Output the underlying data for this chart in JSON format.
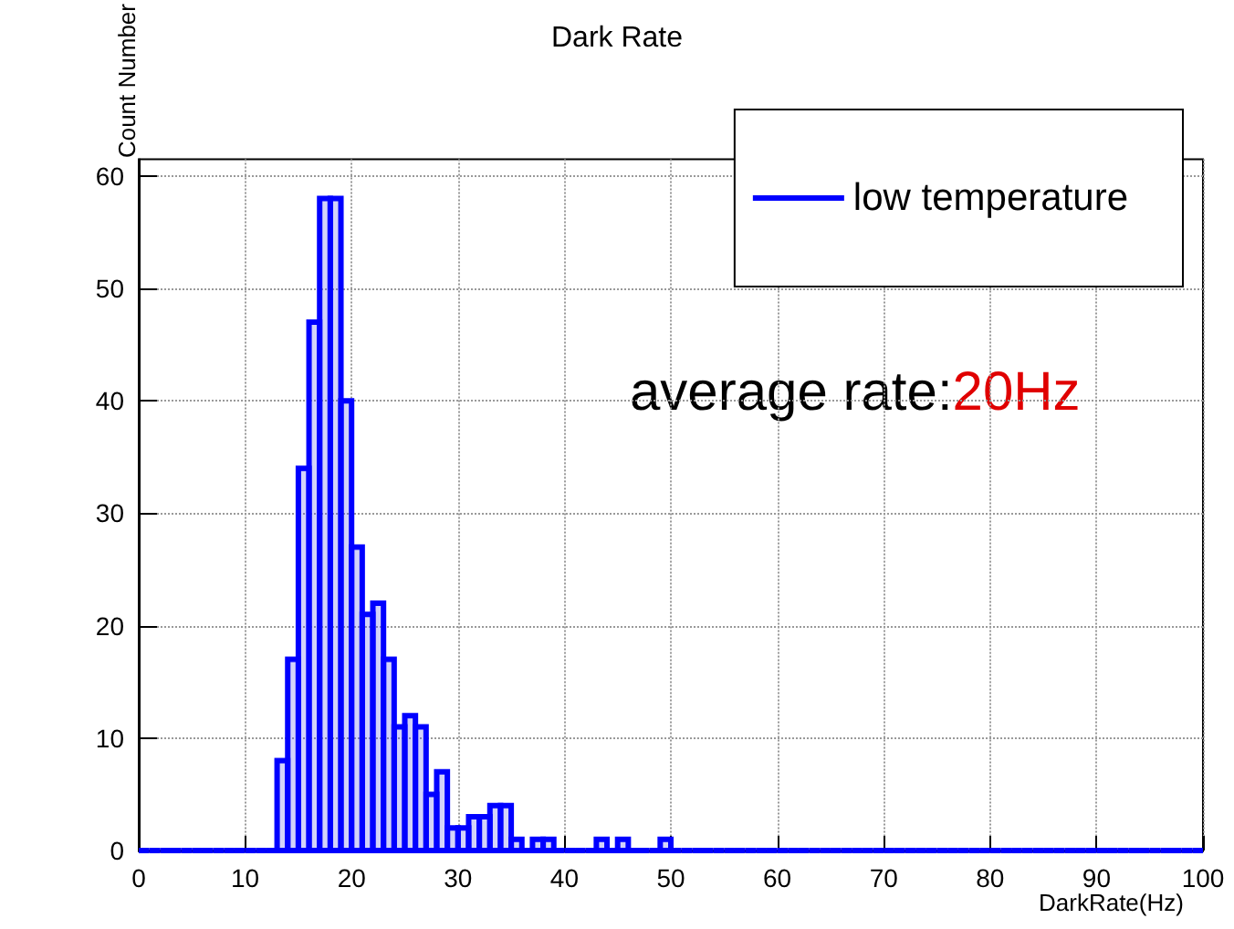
{
  "chart_data": {
    "type": "histogram",
    "title": "Dark Rate",
    "xlabel": "DarkRate(Hz)",
    "ylabel": "Count Number",
    "bins": [
      0,
      1,
      2,
      3,
      4,
      5,
      6,
      7,
      8,
      9,
      10,
      11,
      12,
      13,
      14,
      15,
      16,
      17,
      18,
      19,
      20,
      21,
      22,
      23,
      24,
      25,
      26,
      27,
      28,
      29,
      30,
      31,
      32,
      33,
      34,
      35,
      36,
      37,
      38,
      39,
      40,
      41,
      42,
      43,
      44,
      45,
      46,
      47,
      48,
      49,
      50,
      51,
      52,
      53,
      54,
      55,
      56,
      57,
      58,
      59,
      60,
      61,
      62,
      63,
      64,
      65,
      66,
      67,
      68,
      69,
      70,
      71,
      72,
      73,
      74,
      75,
      76,
      77,
      78,
      79,
      80,
      81,
      82,
      83,
      84,
      85,
      86,
      87,
      88,
      89,
      90,
      91,
      92,
      93,
      94,
      95,
      96,
      97,
      98,
      99,
      100
    ],
    "series": [
      {
        "name": "low temperature",
        "color": "#0000ff",
        "values": [
          0,
          0,
          0,
          0,
          0,
          0,
          0,
          0,
          0,
          0,
          0,
          0,
          0,
          8,
          17,
          34,
          47,
          58,
          58,
          40,
          27,
          21,
          22,
          17,
          11,
          12,
          11,
          5,
          7,
          2,
          2,
          3,
          3,
          4,
          4,
          1,
          0,
          1,
          1,
          0,
          0,
          0,
          0,
          1,
          0,
          1,
          0,
          0,
          0,
          1,
          0,
          0,
          0,
          0,
          0,
          0,
          0,
          0,
          0,
          0,
          0,
          0,
          0,
          0,
          0,
          0,
          0,
          0,
          0,
          0,
          0,
          0,
          0,
          0,
          0,
          0,
          0,
          0,
          0,
          0,
          0,
          0,
          0,
          0,
          0,
          0,
          0,
          0,
          0,
          0,
          0,
          0,
          0,
          0,
          0,
          0,
          0,
          0,
          0,
          0
        ]
      }
    ],
    "xlim": [
      0,
      100
    ],
    "xticks": [
      0,
      10,
      20,
      30,
      40,
      50,
      60,
      70,
      80,
      90,
      100
    ],
    "ylim": [
      0,
      61.5
    ],
    "yticks": [
      0,
      10,
      20,
      30,
      40,
      50,
      60
    ],
    "grid": true,
    "legend": "top right",
    "annotations": [
      "average rate:",
      "20Hz"
    ]
  }
}
